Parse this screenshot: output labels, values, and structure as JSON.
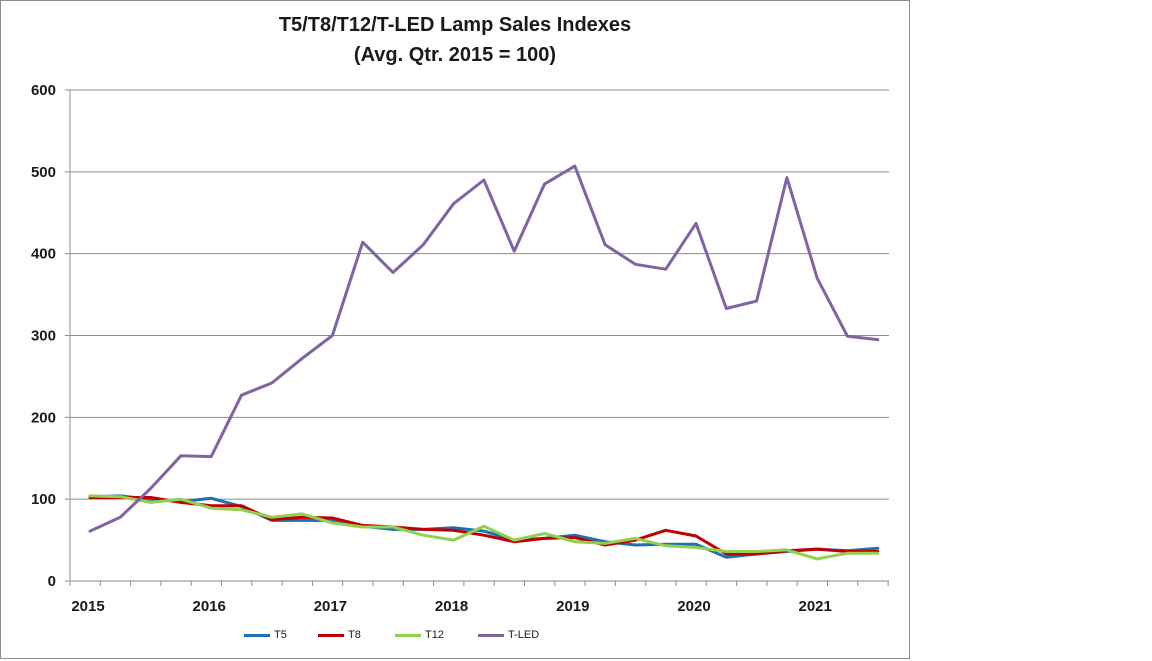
{
  "chart_data": {
    "type": "line",
    "title": "T5/T8/T12/T-LED Lamp Sales Indexes",
    "subtitle": "(Avg. Qtr. 2015 = 100)",
    "x_tick_labels": [
      "2015",
      "2016",
      "2017",
      "2018",
      "2019",
      "2020",
      "2021"
    ],
    "y_tick_labels": [
      "0",
      "100",
      "200",
      "300",
      "400",
      "500",
      "600"
    ],
    "ylim": [
      0,
      600
    ],
    "grid": "horizontal",
    "legend_position": "bottom",
    "series": [
      {
        "name": "T5",
        "color": "#1f6fb5",
        "values": [
          103,
          104,
          100,
          97,
          101,
          91,
          74,
          74,
          74,
          67,
          63,
          63,
          65,
          61,
          50,
          52,
          56,
          48,
          44,
          45,
          45,
          29,
          33,
          36,
          39,
          37,
          40
        ]
      },
      {
        "name": "T8",
        "color": "#c00000",
        "values": [
          102,
          102,
          102,
          96,
          92,
          92,
          75,
          78,
          77,
          68,
          66,
          63,
          62,
          56,
          48,
          52,
          53,
          44,
          50,
          62,
          55,
          33,
          33,
          37,
          39,
          36,
          36
        ]
      },
      {
        "name": "T12",
        "color": "#92d050",
        "values": [
          104,
          103,
          96,
          100,
          89,
          87,
          78,
          82,
          71,
          66,
          66,
          56,
          50,
          67,
          50,
          58,
          48,
          46,
          52,
          43,
          41,
          36,
          36,
          38,
          27,
          34,
          34
        ]
      },
      {
        "name": "T-LED",
        "color": "#8064a2",
        "values": [
          61,
          78,
          113,
          153,
          152,
          227,
          242,
          272,
          300,
          414,
          377,
          411,
          461,
          490,
          403,
          485,
          507,
          411,
          387,
          381,
          437,
          333,
          342,
          493,
          370,
          299,
          295
        ]
      }
    ]
  }
}
